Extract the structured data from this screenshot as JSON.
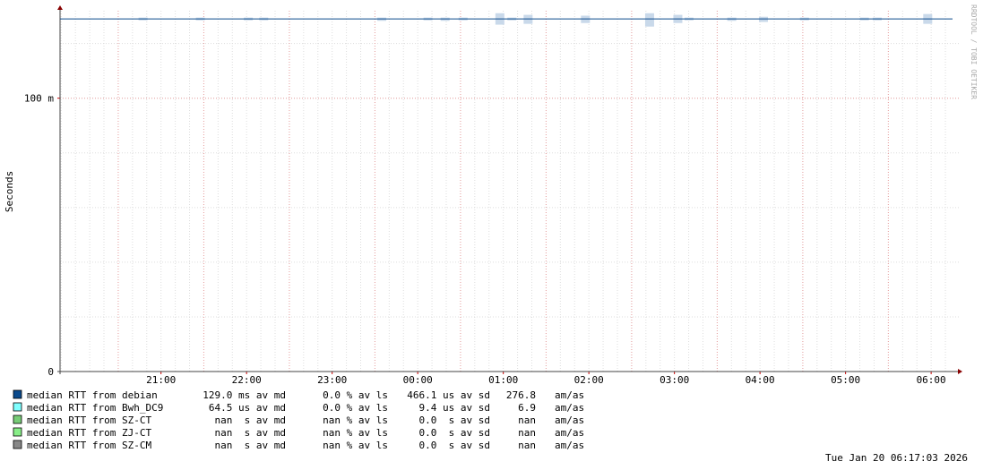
{
  "chart_data": {
    "type": "line",
    "y_label": "Seconds",
    "watermark": "RRDTOOL / TOBI OETIKER",
    "timestamp": "Tue Jan 20 06:17:03 2026",
    "xlim": [
      19.82,
      30.25
    ],
    "xticks": [
      {
        "value": 21,
        "label": "21:00"
      },
      {
        "value": 22,
        "label": "22:00"
      },
      {
        "value": 23,
        "label": "23:00"
      },
      {
        "value": 24,
        "label": "00:00"
      },
      {
        "value": 25,
        "label": "01:00"
      },
      {
        "value": 26,
        "label": "02:00"
      },
      {
        "value": 27,
        "label": "03:00"
      },
      {
        "value": 28,
        "label": "04:00"
      },
      {
        "value": 29,
        "label": "05:00"
      },
      {
        "value": 30,
        "label": "06:00"
      }
    ],
    "ylim": [
      0,
      0.132
    ],
    "yticks": [
      0,
      {
        "value": 0.1,
        "label": "100 m"
      }
    ],
    "grid": true,
    "x": [
      19.82,
      30.25
    ],
    "smoke": {
      "color": "#c9d9ea",
      "x": [
        20.79,
        21.46,
        22.02,
        22.2,
        23.58,
        24.12,
        24.32,
        24.53,
        24.96,
        25.1,
        25.29,
        25.96,
        26.71,
        27.04,
        27.17,
        27.67,
        28.04,
        28.52,
        29.22,
        29.37,
        29.96
      ],
      "low": [
        0.1285,
        0.1285,
        0.1285,
        0.1285,
        0.1283,
        0.1285,
        0.1283,
        0.1285,
        0.1269,
        0.1285,
        0.1272,
        0.1275,
        0.1262,
        0.1275,
        0.1285,
        0.1283,
        0.1279,
        0.1285,
        0.1285,
        0.1285,
        0.1272
      ],
      "high": [
        0.1295,
        0.1295,
        0.1295,
        0.1295,
        0.1295,
        0.1295,
        0.1295,
        0.1295,
        0.1311,
        0.1295,
        0.1305,
        0.1302,
        0.1311,
        0.1305,
        0.1295,
        0.1295,
        0.1298,
        0.1295,
        0.1295,
        0.1295,
        0.1308
      ]
    },
    "series": [
      {
        "name": "median RTT from debian",
        "color": "#0b4a8c",
        "values": [
          0.129,
          0.129
        ],
        "stats": [
          "129.0 ms av md",
          "0.0 % av ls",
          "466.1 us av sd",
          "276.8",
          "am/as"
        ]
      },
      {
        "name": "median RTT from Bwh_DC9",
        "color": "#80ffff",
        "values": [
          null,
          null
        ],
        "stats": [
          "64.5 us av md",
          "0.0 % av ls",
          "9.4 us av sd",
          "6.9",
          "am/as"
        ]
      },
      {
        "name": "median RTT from SZ-CT",
        "color": "#77cc77",
        "values": [
          null,
          null
        ],
        "stats": [
          "nan  s av md",
          "nan % av ls",
          "0.0  s av sd",
          "nan",
          "am/as"
        ]
      },
      {
        "name": "median RTT from ZJ-CT",
        "color": "#88ee88",
        "values": [
          null,
          null
        ],
        "stats": [
          "nan  s av md",
          "nan % av ls",
          "0.0  s av sd",
          "nan",
          "am/as"
        ]
      },
      {
        "name": "median RTT from SZ-CM",
        "color": "#888888",
        "values": [
          null,
          null
        ],
        "stats": [
          "nan  s av md",
          "nan % av ls",
          "0.0  s av sd",
          "nan",
          "am/as"
        ]
      }
    ]
  }
}
